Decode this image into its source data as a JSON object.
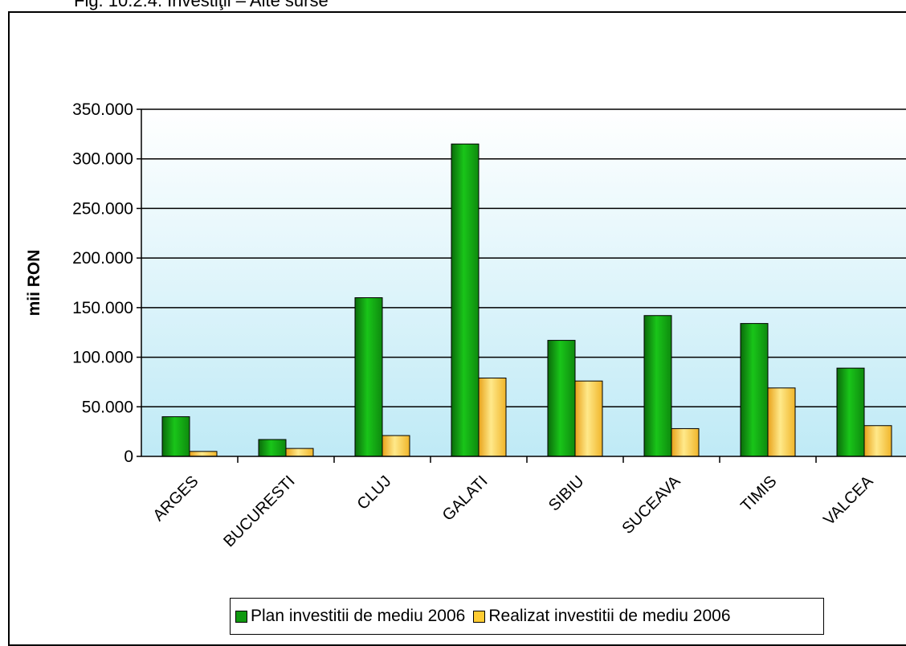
{
  "caption": "Fig. 10.2.4. Investiţii – Alte surse",
  "chart_data": {
    "type": "bar",
    "ylabel": "mii RON",
    "xlabel": "",
    "ylim": [
      0,
      350000
    ],
    "yticks": [
      0,
      50000,
      100000,
      150000,
      200000,
      250000,
      300000,
      350000
    ],
    "ytick_labels": [
      "0",
      "50.000",
      "100.000",
      "150.000",
      "200.000",
      "250.000",
      "300.000",
      "350.000"
    ],
    "categories": [
      "ARGES",
      "BUCURESTI",
      "CLUJ",
      "GALATI",
      "SIBIU",
      "SUCEAVA",
      "TIMIS",
      "VALCEA"
    ],
    "series": [
      {
        "name": "Plan investitii de mediu 2006",
        "color": "#119911",
        "values": [
          40000,
          17000,
          160000,
          315000,
          117000,
          142000,
          134000,
          89000
        ]
      },
      {
        "name": "Realizat investitii de mediu 2006",
        "color": "#FFCC33",
        "values": [
          5000,
          8000,
          21000,
          79000,
          76000,
          28000,
          69000,
          31000
        ]
      }
    ],
    "grid": true,
    "legend_position": "bottom"
  }
}
